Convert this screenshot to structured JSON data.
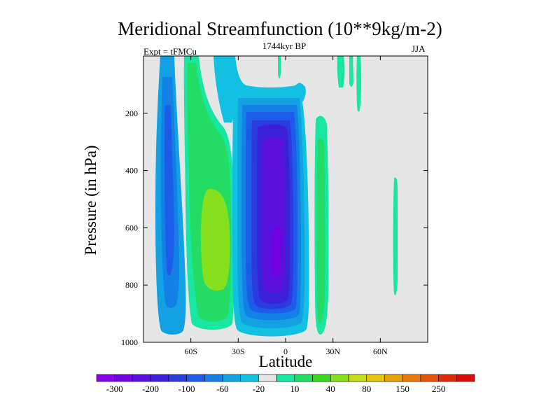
{
  "chart_data": {
    "type": "heatmap",
    "title": "Meridional Streamfunction (10**9kg/m-2)",
    "subtitle": "1744kyr BP",
    "experiment": "Expt = tFMCu",
    "season": "JJA",
    "xlabel": "Latitude",
    "ylabel": "Pressure (in hPa)",
    "xlim": [
      -90,
      90
    ],
    "ylim": [
      1000,
      0
    ],
    "x_ticks": [
      {
        "value": -60,
        "label": "60S"
      },
      {
        "value": -30,
        "label": "30S"
      },
      {
        "value": 0,
        "label": "0"
      },
      {
        "value": 30,
        "label": "30N"
      },
      {
        "value": 60,
        "label": "60N"
      }
    ],
    "y_ticks": [
      {
        "value": 200,
        "label": "200"
      },
      {
        "value": 400,
        "label": "400"
      },
      {
        "value": 600,
        "label": "600"
      },
      {
        "value": 800,
        "label": "800"
      },
      {
        "value": 1000,
        "label": "1000"
      }
    ],
    "colorbar": {
      "colors": [
        "#8a00e6",
        "#7000e0",
        "#5a10dc",
        "#3c1fd8",
        "#2a3be0",
        "#1d5ce8",
        "#1380e6",
        "#12a2e4",
        "#12c1e2",
        "#e6e6e6",
        "#1ae6a4",
        "#22dc64",
        "#3ad820",
        "#86e01e",
        "#c4dc1a",
        "#e6c40e",
        "#eaa00a",
        "#ea7a08",
        "#e65206",
        "#e02a04",
        "#dc0a00"
      ],
      "labels": [
        "-300",
        "-200",
        "-100",
        "-60",
        "-20",
        "10",
        "40",
        "80",
        "150",
        "250"
      ]
    },
    "features": [
      {
        "name": "Southern subpolar negative cell",
        "type": "negative",
        "lat_range": [
          -80,
          -63
        ],
        "p_range": [
          0,
          975
        ],
        "core_value": -40
      },
      {
        "name": "Southern mid-latitude positive cell",
        "type": "positive",
        "lat_range": [
          -62,
          -32
        ],
        "p_range": [
          0,
          970
        ],
        "core_value": 60
      },
      {
        "name": "Southern Hadley cell",
        "type": "negative",
        "lat_range": [
          -32,
          13
        ],
        "p_range": [
          120,
          985
        ],
        "core_value": -200
      },
      {
        "name": "Northern Hadley cell",
        "type": "positive",
        "lat_range": [
          18,
          26
        ],
        "p_range": [
          190,
          975
        ],
        "core_value": 30
      },
      {
        "name": "Northern polar positive band",
        "type": "positive",
        "lat_range": [
          69,
          71
        ],
        "p_range": [
          430,
          860
        ],
        "core_value": 20
      }
    ]
  }
}
